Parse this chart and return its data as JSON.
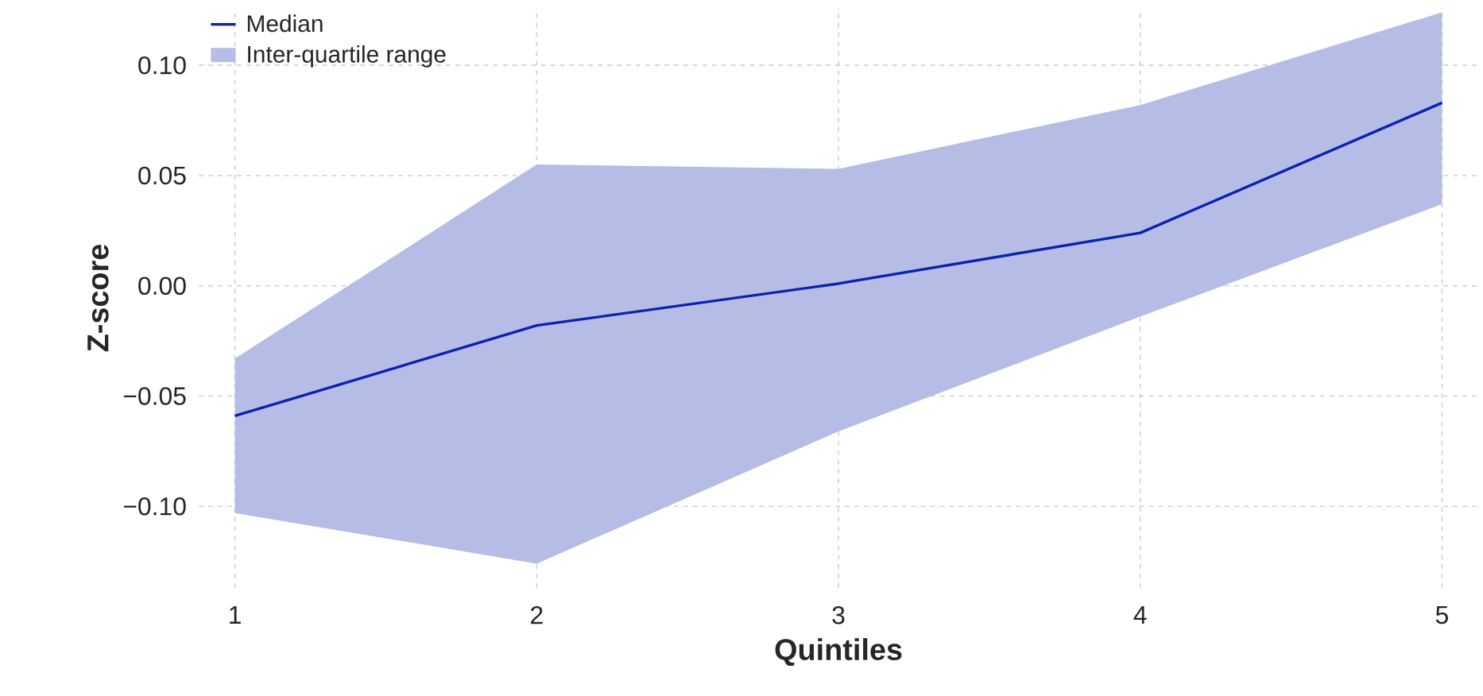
{
  "chart_data": {
    "type": "line",
    "xlabel": "Quintiles",
    "ylabel": "Z-score",
    "x": [
      1,
      2,
      3,
      4,
      5
    ],
    "series": [
      {
        "name": "Median",
        "color": "#0a22b0",
        "values": [
          -0.059,
          -0.018,
          0.001,
          0.024,
          0.083
        ],
        "lower": [
          -0.103,
          -0.126,
          -0.066,
          -0.014,
          0.037
        ],
        "upper": [
          -0.033,
          0.055,
          0.053,
          0.082,
          0.124
        ]
      }
    ],
    "annotations": [
      "Inter-quartile range"
    ],
    "xlim": [
      0.88,
      5.12
    ],
    "ylim": [
      -0.137,
      0.126
    ],
    "xticks": [
      1,
      2,
      3,
      4,
      5
    ],
    "yticks": [
      {
        "value": -0.1,
        "label": "−0.10"
      },
      {
        "value": -0.05,
        "label": "−0.05"
      },
      {
        "value": 0,
        "label": "0.00"
      },
      {
        "value": 0.05,
        "label": "0.05"
      },
      {
        "value": 0.1,
        "label": "0.10"
      }
    ],
    "grid": true,
    "legend": "top left",
    "line_style": "solid",
    "marker": "none"
  }
}
